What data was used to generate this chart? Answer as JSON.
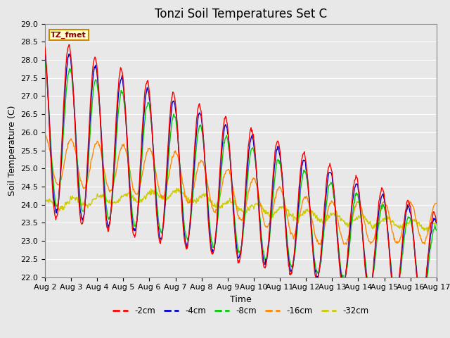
{
  "title": "Tonzi Soil Temperatures Set C",
  "xlabel": "Time",
  "ylabel": "Soil Temperature (C)",
  "ylim": [
    22.0,
    29.0
  ],
  "yticks": [
    22.0,
    22.5,
    23.0,
    23.5,
    24.0,
    24.5,
    25.0,
    25.5,
    26.0,
    26.5,
    27.0,
    27.5,
    28.0,
    28.5,
    29.0
  ],
  "xtick_labels": [
    "Aug 2",
    "Aug 3",
    "Aug 4",
    "Aug 5",
    "Aug 6",
    "Aug 7",
    "Aug 8",
    "Aug 9",
    "Aug 10",
    "Aug 11",
    "Aug 12",
    "Aug 13",
    "Aug 14",
    "Aug 15",
    "Aug 16",
    "Aug 17"
  ],
  "series_colors": [
    "#ff0000",
    "#0000cc",
    "#00cc00",
    "#ff8800",
    "#cccc00"
  ],
  "series_labels": [
    "-2cm",
    "-4cm",
    "-8cm",
    "-16cm",
    "-32cm"
  ],
  "legend_label": "TZ_fmet",
  "legend_bg": "#ffffcc",
  "legend_border": "#cc8800",
  "plot_bg": "#e8e8e8",
  "fig_bg": "#e8e8e8",
  "grid_color": "#ffffff",
  "title_fontsize": 12,
  "axis_fontsize": 9,
  "tick_fontsize": 8
}
